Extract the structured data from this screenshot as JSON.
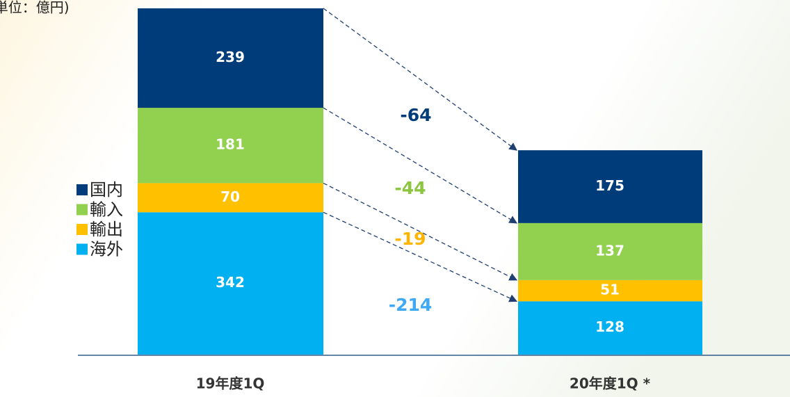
{
  "chart_data": {
    "type": "stacked_bar",
    "unit_label": "(単位：億円)",
    "categories": [
      "19年度1Q",
      "20年度1Q *"
    ],
    "series": [
      {
        "name": "国内",
        "color": "#003b7a",
        "values": [
          239,
          175
        ],
        "change": -64,
        "change_color": "#003b7a"
      },
      {
        "name": "輸入",
        "color": "#92d050",
        "values": [
          181,
          137
        ],
        "change": -44,
        "change_color": "#8cc63f"
      },
      {
        "name": "輸出",
        "color": "#ffc000",
        "values": [
          70,
          51
        ],
        "change": -19,
        "change_color": "#ffb400"
      },
      {
        "name": "海外",
        "color": "#00b0f0",
        "values": [
          342,
          128
        ],
        "change": -214,
        "change_color": "#3fa9f5"
      }
    ],
    "legend": "left"
  }
}
